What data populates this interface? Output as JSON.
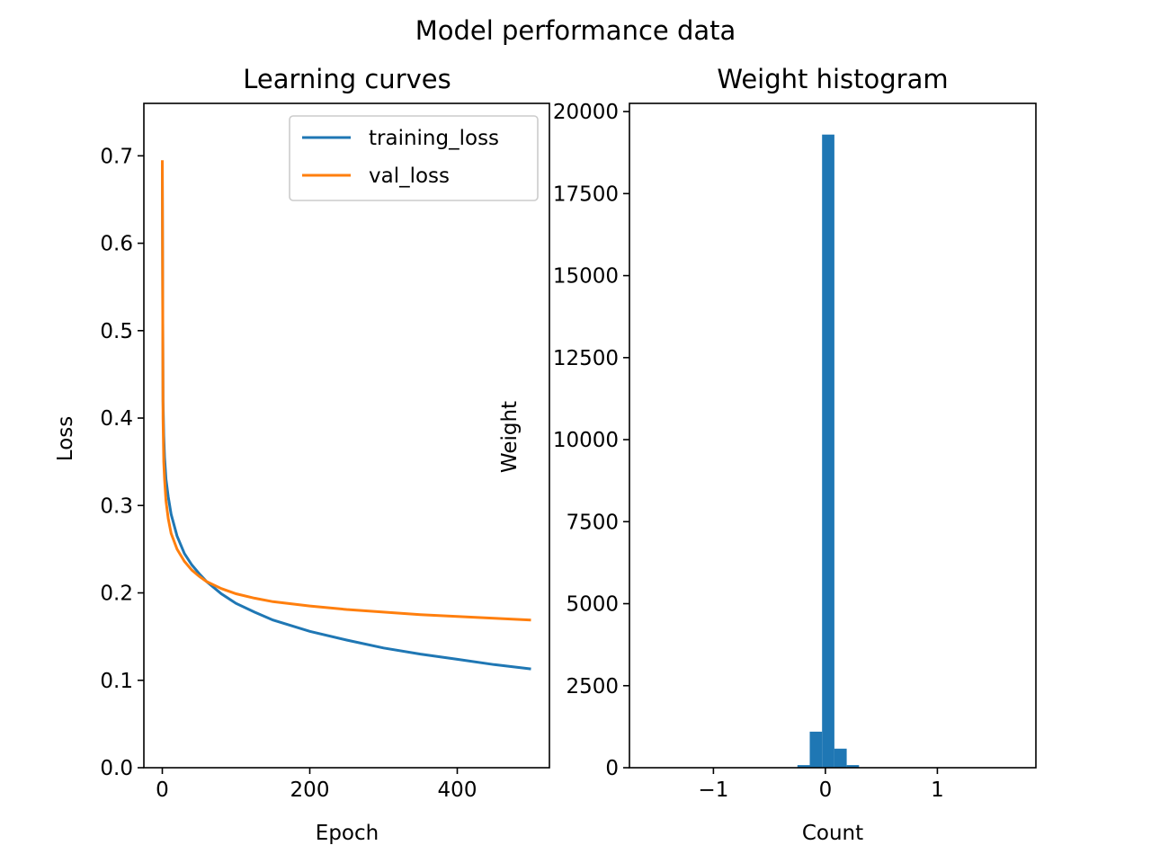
{
  "figure": {
    "suptitle": "Model performance data"
  },
  "chart_data": [
    {
      "type": "line",
      "title": "Learning curves",
      "xlabel": "Epoch",
      "ylabel": "Loss",
      "xlim": [
        -25,
        525
      ],
      "ylim": [
        0,
        0.76
      ],
      "xticks": [
        0,
        200,
        400
      ],
      "yticks": [
        0.0,
        0.1,
        0.2,
        0.3,
        0.4,
        0.5,
        0.6,
        0.7
      ],
      "grid": false,
      "legend": "top-right",
      "series": [
        {
          "name": "training_loss",
          "color": "#1f77b4",
          "x": [
            0,
            1,
            2,
            3,
            5,
            8,
            12,
            20,
            30,
            40,
            50,
            60,
            70,
            80,
            100,
            125,
            150,
            200,
            250,
            300,
            350,
            400,
            450,
            500
          ],
          "y": [
            0.69,
            0.42,
            0.38,
            0.355,
            0.33,
            0.31,
            0.29,
            0.265,
            0.245,
            0.232,
            0.222,
            0.213,
            0.206,
            0.199,
            0.188,
            0.178,
            0.169,
            0.156,
            0.146,
            0.137,
            0.13,
            0.124,
            0.118,
            0.113
          ]
        },
        {
          "name": "val_loss",
          "color": "#ff7f0e",
          "x": [
            0,
            1,
            2,
            3,
            5,
            8,
            12,
            20,
            30,
            40,
            50,
            60,
            70,
            80,
            100,
            125,
            150,
            200,
            250,
            300,
            350,
            400,
            450,
            500
          ],
          "y": [
            0.695,
            0.4,
            0.35,
            0.33,
            0.305,
            0.285,
            0.268,
            0.25,
            0.236,
            0.226,
            0.219,
            0.213,
            0.209,
            0.205,
            0.199,
            0.194,
            0.19,
            0.185,
            0.181,
            0.178,
            0.175,
            0.173,
            0.171,
            0.169
          ]
        }
      ]
    },
    {
      "type": "bar",
      "title": "Weight histogram",
      "xlabel": "Count",
      "ylabel": "Weight",
      "xlim": [
        -1.75,
        1.88
      ],
      "ylim": [
        0,
        20250
      ],
      "xticks": [
        -1,
        0,
        1
      ],
      "xtick_labels": [
        "−1",
        "0",
        "1"
      ],
      "yticks": [
        0,
        2500,
        5000,
        7500,
        10000,
        12500,
        15000,
        17500,
        20000
      ],
      "grid": false,
      "color": "#1f77b4",
      "bin_width": 0.11,
      "bins": [
        {
          "x0": -0.25,
          "value": 80
        },
        {
          "x0": -0.14,
          "value": 1100
        },
        {
          "x0": -0.03,
          "value": 19300
        },
        {
          "x0": 0.08,
          "value": 580
        },
        {
          "x0": 0.19,
          "value": 80
        }
      ]
    }
  ]
}
